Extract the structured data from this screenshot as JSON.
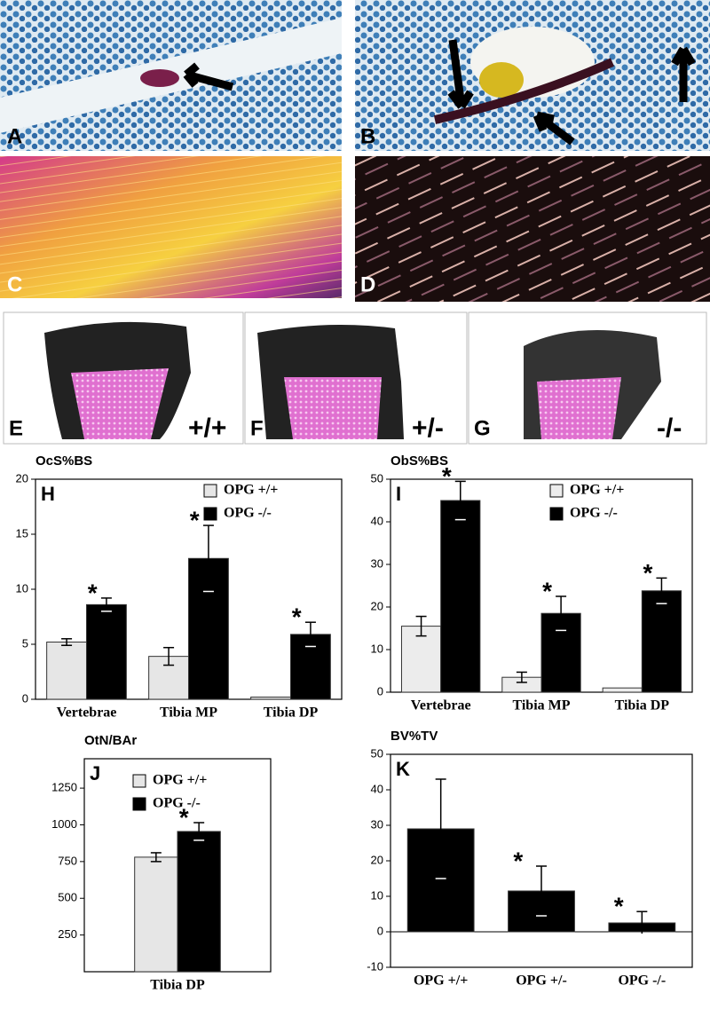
{
  "panels": [
    {
      "label": "A"
    },
    {
      "label": "B"
    },
    {
      "label": "C"
    },
    {
      "label": "D"
    },
    {
      "label": "E",
      "genotype": "+/+"
    },
    {
      "label": "F",
      "genotype": "+/-"
    },
    {
      "label": "G",
      "genotype": "-/-"
    }
  ],
  "chart_data": [
    {
      "type": "bar",
      "title": "OcS%BS",
      "panel": "H",
      "categories": [
        "Vertebrae",
        "Tibia MP",
        "Tibia DP"
      ],
      "series": [
        {
          "name": "OPG +/+",
          "color": "#e6e6e6",
          "values": [
            5.2,
            3.9,
            0.2
          ],
          "errors": [
            0.3,
            0.8,
            null
          ]
        },
        {
          "name": "OPG -/-",
          "color": "#000000",
          "values": [
            8.6,
            12.8,
            5.9
          ],
          "errors": [
            0.6,
            3.0,
            1.1
          ],
          "annotation_labels": [
            "*",
            "*",
            "*"
          ]
        }
      ],
      "ylim": [
        0,
        20
      ],
      "yticks": [
        0,
        5,
        10,
        15,
        20
      ],
      "legend": "upper right"
    },
    {
      "type": "bar",
      "title": "ObS%BS",
      "panel": "I",
      "categories": [
        "Vertebrae",
        "Tibia MP",
        "Tibia DP"
      ],
      "series": [
        {
          "name": "OPG +/+",
          "color": "#ececec",
          "values": [
            15.5,
            3.5,
            1.0
          ],
          "errors": [
            2.3,
            1.2,
            null
          ]
        },
        {
          "name": "OPG -/-",
          "color": "#000000",
          "values": [
            45,
            18.5,
            23.8
          ],
          "errors": [
            4.5,
            4,
            3
          ],
          "annotation_labels": [
            "*",
            "*",
            "*"
          ]
        }
      ],
      "ylim": [
        0,
        50
      ],
      "yticks": [
        0,
        10,
        20,
        30,
        40,
        50
      ],
      "legend": "upper right"
    },
    {
      "type": "bar",
      "title": "OtN/BAr",
      "panel": "J",
      "categories": [
        "Tibia DP"
      ],
      "series": [
        {
          "name": "OPG +/+",
          "color": "#e6e6e6",
          "values": [
            780
          ],
          "errors": [
            30
          ]
        },
        {
          "name": "OPG -/-",
          "color": "#000000",
          "values": [
            955
          ],
          "errors": [
            60
          ],
          "annotation_labels": [
            "*"
          ]
        }
      ],
      "ylim": [
        0,
        1450
      ],
      "yticks": [
        250,
        500,
        750,
        1000,
        1250
      ],
      "legend": "upper right"
    },
    {
      "type": "bar",
      "title": "BV%TV",
      "panel": "K",
      "categories": [
        "OPG +/+",
        "OPG +/-",
        "OPG -/-"
      ],
      "series": [
        {
          "color": "#000000",
          "values": [
            29,
            11.5,
            2.5
          ],
          "errors": [
            14,
            7,
            3.2
          ],
          "annotation_labels": [
            null,
            "*",
            "*"
          ]
        }
      ],
      "ylim": [
        -10,
        50
      ],
      "yticks": [
        -10,
        0,
        10,
        20,
        30,
        40,
        50
      ]
    }
  ]
}
